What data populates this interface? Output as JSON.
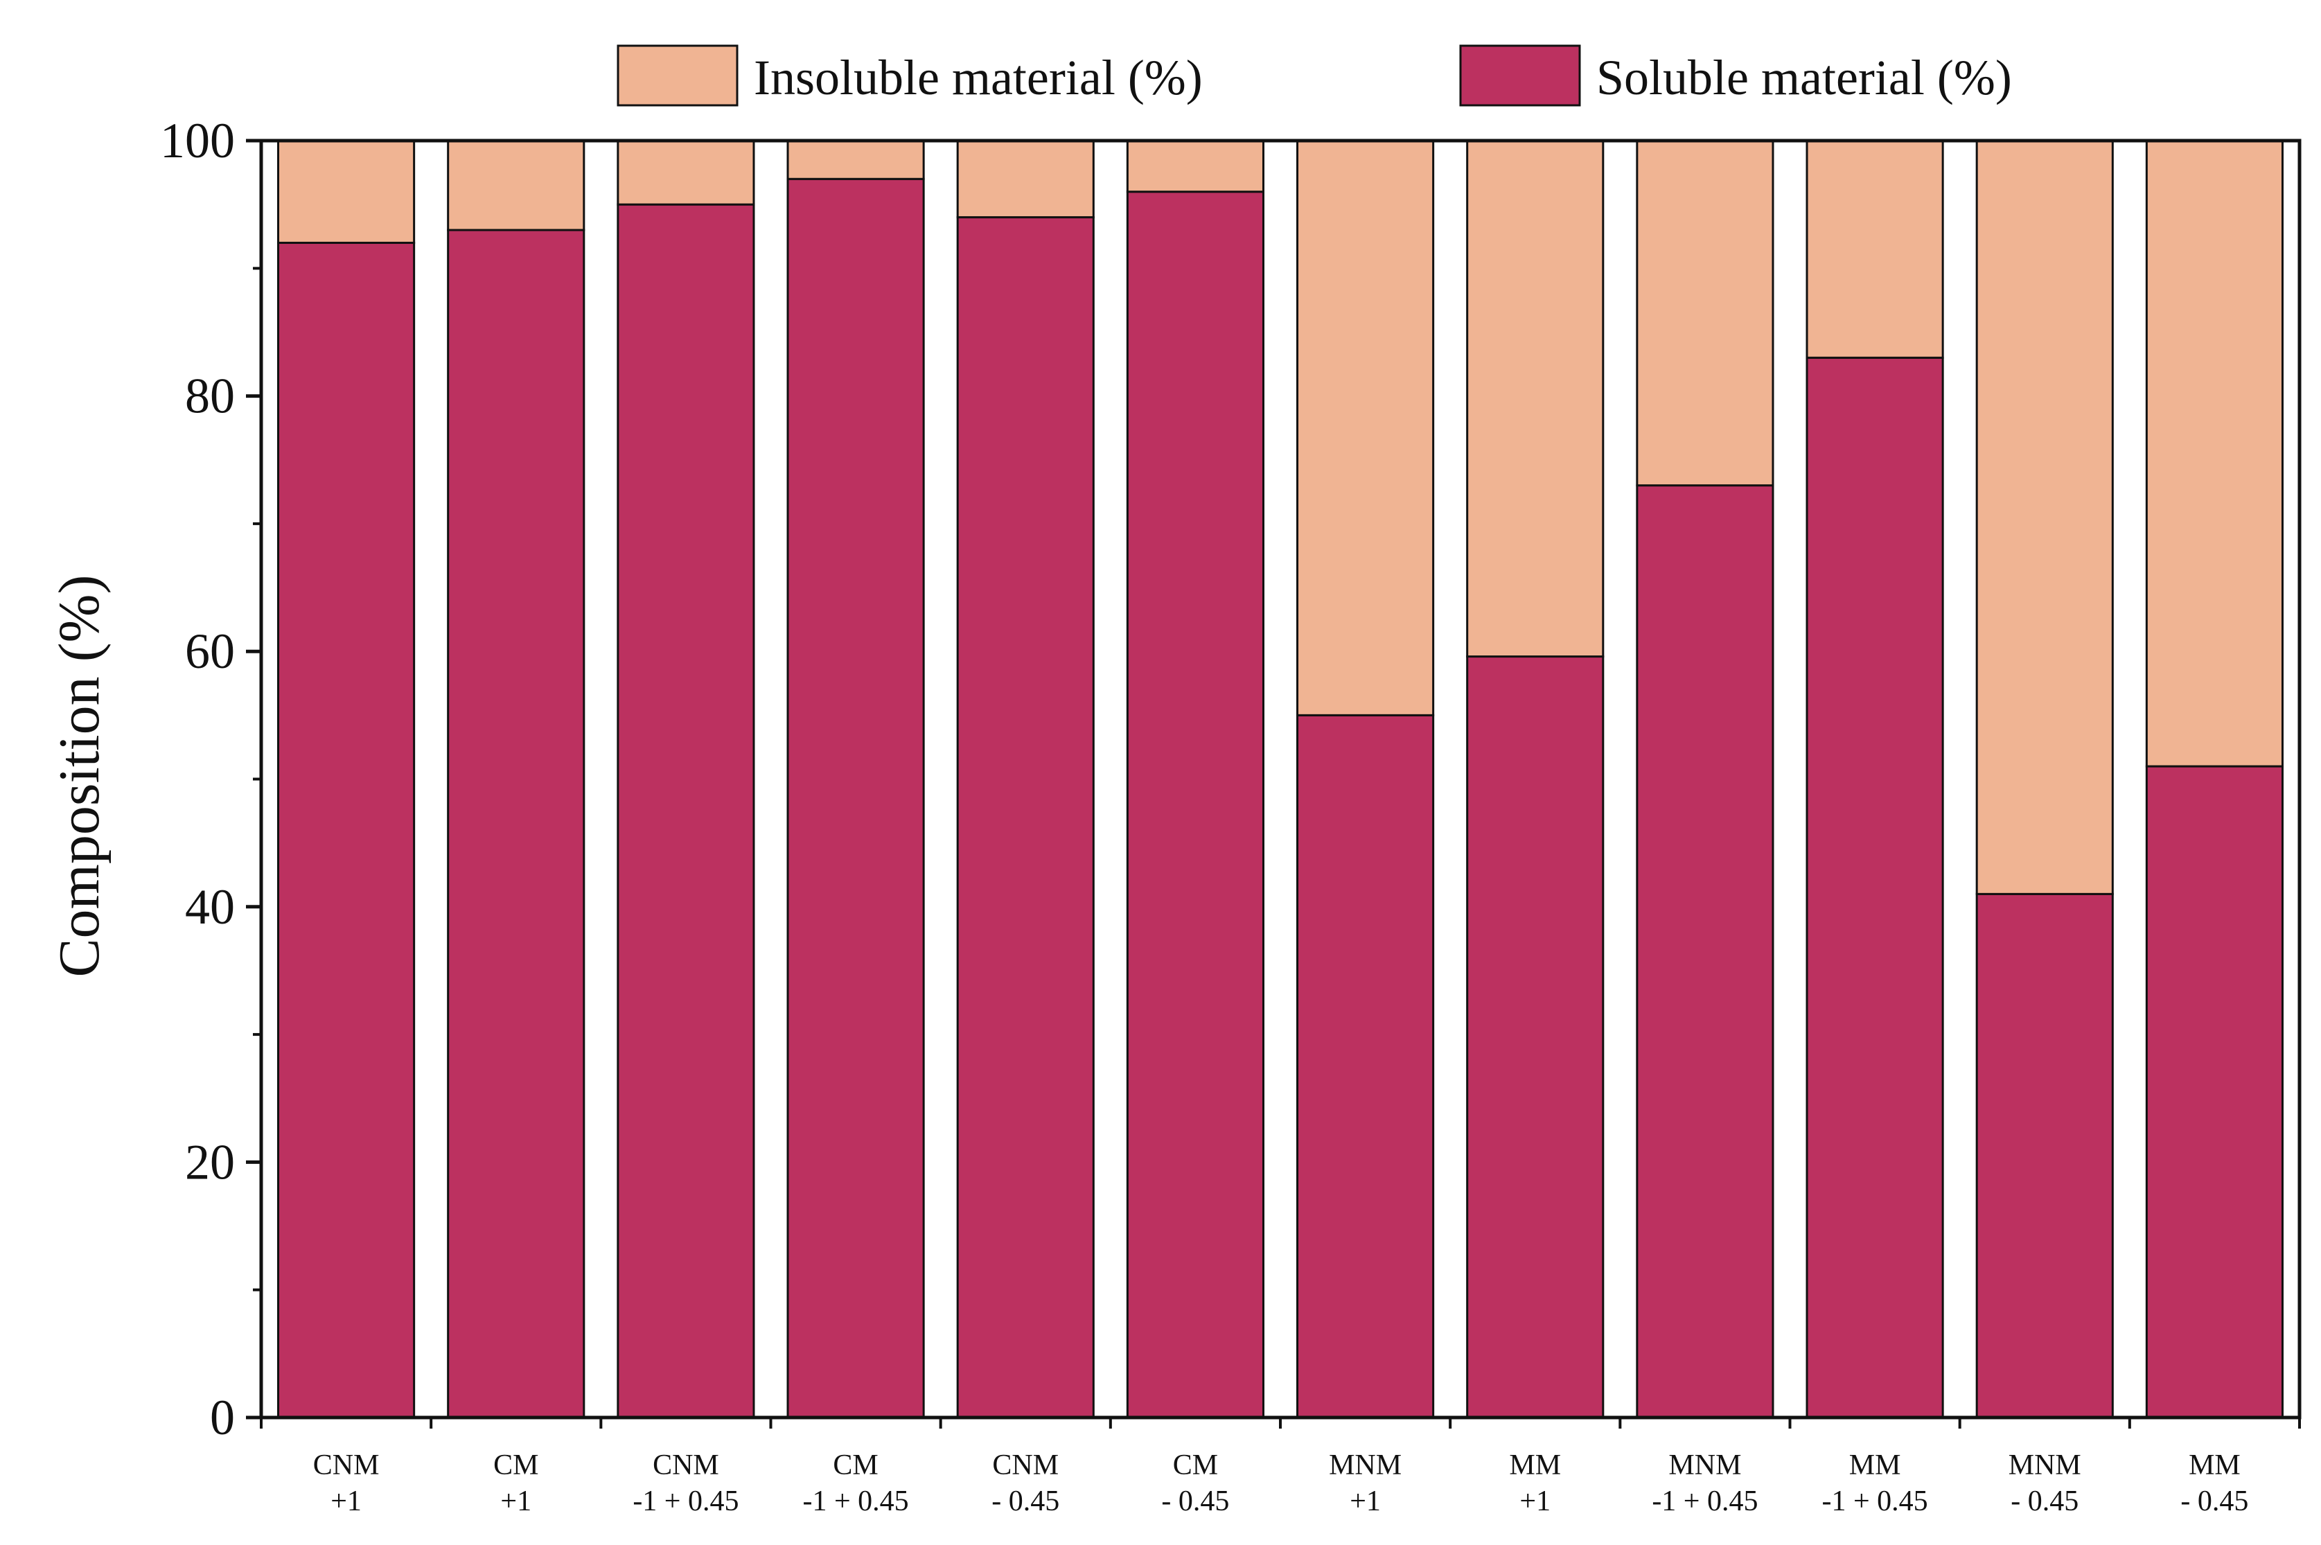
{
  "chart_data": {
    "type": "bar",
    "stacked": true,
    "title": "",
    "xlabel": "",
    "ylabel": "Composition (%)",
    "ylim": [
      0,
      100
    ],
    "yticks": [
      "0",
      "20",
      "40",
      "60",
      "80",
      "100"
    ],
    "grid": false,
    "legend_position": "top",
    "categories": [
      {
        "line1": "CNM",
        "line2": "+1"
      },
      {
        "line1": "CM",
        "line2": "+1"
      },
      {
        "line1": "CNM",
        "line2": "-1 + 0.45"
      },
      {
        "line1": "CM",
        "line2": "-1 + 0.45"
      },
      {
        "line1": "CNM",
        "line2": "- 0.45"
      },
      {
        "line1": "CM",
        "line2": "- 0.45"
      },
      {
        "line1": "MNM",
        "line2": "+1"
      },
      {
        "line1": "MM",
        "line2": "+1"
      },
      {
        "line1": "MNM",
        "line2": "-1 + 0.45"
      },
      {
        "line1": "MM",
        "line2": "-1 + 0.45"
      },
      {
        "line1": "MNM",
        "line2": "- 0.45"
      },
      {
        "line1": "MM",
        "line2": "- 0.45"
      }
    ],
    "series": [
      {
        "name": "Soluble material (%)",
        "color": "#bc3160",
        "values": [
          92,
          93,
          95,
          97,
          94,
          96,
          55,
          59.6,
          73,
          83,
          41,
          51
        ]
      },
      {
        "name": "Insoluble material (%)",
        "color": "#f0b493",
        "values": [
          8,
          7,
          5,
          3,
          6,
          4,
          45,
          40.4,
          27,
          17,
          59,
          49
        ]
      }
    ],
    "legend": {
      "insoluble_label": "Insoluble material (%)",
      "soluble_label": "Soluble material (%)",
      "insoluble_color": "#f0b493",
      "soluble_color": "#bc3160"
    }
  }
}
